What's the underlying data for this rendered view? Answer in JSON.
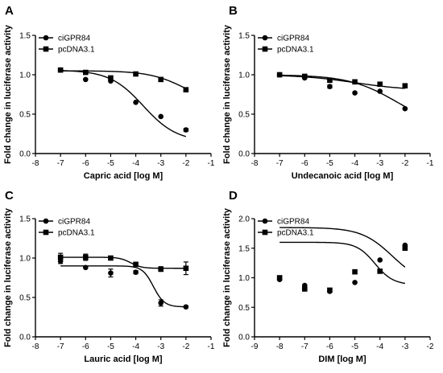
{
  "chart_data": [
    {
      "panel": "A",
      "type": "scatter",
      "xlabel": "Capric acid [log M]",
      "ylabel": "Fold change in luciferase activity",
      "xlim": [
        -8,
        -1
      ],
      "ylim": [
        0,
        1.5
      ],
      "xticks": [
        "-8",
        "-7",
        "-6",
        "-5",
        "-4",
        "-3",
        "-2",
        "-1"
      ],
      "yticks": [
        "0.0",
        "0.5",
        "1.0",
        "1.5"
      ],
      "legend_position": "top-left",
      "series": [
        {
          "name": "ciGPR84",
          "marker": "circle",
          "x": [
            -7,
            -6,
            -5,
            -4,
            -3,
            -2
          ],
          "y": [
            1.06,
            0.94,
            0.92,
            0.65,
            0.47,
            0.3
          ],
          "err": [
            0,
            0,
            0,
            0,
            0,
            0.02
          ],
          "fit": {
            "top": 1.06,
            "bottom": 0.15,
            "logec50": -3.7,
            "hill": 0.65
          }
        },
        {
          "name": "pcDNA3.1",
          "marker": "square",
          "x": [
            -7,
            -6,
            -5,
            -4,
            -3,
            -2
          ],
          "y": [
            1.06,
            1.03,
            0.96,
            1.01,
            0.94,
            0.81
          ],
          "err": [
            0,
            0,
            0,
            0,
            0,
            0.02
          ],
          "fit": {
            "top": 1.05,
            "bottom": 0.6,
            "logec50": -2.0,
            "hill": 0.6
          }
        }
      ]
    },
    {
      "panel": "B",
      "type": "scatter",
      "xlabel": "Undecanoic acid [log M]",
      "ylabel": "Fold change in luciferase activity",
      "xlim": [
        -8,
        -1
      ],
      "ylim": [
        0,
        1.5
      ],
      "xticks": [
        "-8",
        "-7",
        "-6",
        "-5",
        "-4",
        "-3",
        "-2",
        "-1"
      ],
      "yticks": [
        "0.0",
        "0.5",
        "1.0",
        "1.5"
      ],
      "legend_position": "top-left",
      "series": [
        {
          "name": "ciGPR84",
          "marker": "circle",
          "x": [
            -7,
            -6,
            -5,
            -4,
            -3,
            -2
          ],
          "y": [
            1.0,
            0.96,
            0.85,
            0.77,
            0.79,
            0.57
          ],
          "err": [
            0,
            0,
            0.02,
            0,
            0,
            0
          ],
          "fit": {
            "top": 1.0,
            "bottom": 0.3,
            "logec50": -2.3,
            "hill": 0.45
          }
        },
        {
          "name": "pcDNA3.1",
          "marker": "square",
          "x": [
            -7,
            -6,
            -5,
            -4,
            -3,
            -2
          ],
          "y": [
            1.0,
            0.98,
            0.93,
            0.91,
            0.88,
            0.86
          ],
          "err": [
            0,
            0,
            0,
            0,
            0,
            0
          ],
          "fit": {
            "top": 1.0,
            "bottom": 0.8,
            "logec50": -4.0,
            "hill": 0.4
          }
        }
      ]
    },
    {
      "panel": "C",
      "type": "scatter",
      "xlabel": "Lauric acid [log M]",
      "ylabel": "Fold change in luciferase activity",
      "xlim": [
        -8,
        -1
      ],
      "ylim": [
        0,
        1.5
      ],
      "xticks": [
        "-8",
        "-7",
        "-6",
        "-5",
        "-4",
        "-3",
        "-2",
        "-1"
      ],
      "yticks": [
        "0.0",
        "0.5",
        "1.0",
        "1.5"
      ],
      "legend_position": "top-left",
      "series": [
        {
          "name": "ciGPR84",
          "marker": "circle",
          "x": [
            -7,
            -6,
            -5,
            -4,
            -3,
            -2
          ],
          "y": [
            0.96,
            0.88,
            0.81,
            0.82,
            0.43,
            0.38
          ],
          "err": [
            0.03,
            0,
            0.05,
            0.02,
            0.04,
            0.01
          ],
          "fit": {
            "top": 0.9,
            "bottom": 0.38,
            "logec50": -3.3,
            "hill": 2.0
          }
        },
        {
          "name": "pcDNA3.1",
          "marker": "square",
          "x": [
            -7,
            -6,
            -5,
            -4,
            -3,
            -2
          ],
          "y": [
            1.01,
            1.01,
            1.0,
            0.92,
            0.86,
            0.87
          ],
          "err": [
            0.05,
            0.04,
            0.02,
            0.02,
            0.03,
            0.08
          ],
          "fit": {
            "top": 1.01,
            "bottom": 0.87,
            "logec50": -4.2,
            "hill": 2.0
          }
        }
      ]
    },
    {
      "panel": "D",
      "type": "scatter",
      "xlabel": "DIM [log M]",
      "ylabel": "Fold change in luciferase activity",
      "xlim": [
        -9,
        -2
      ],
      "ylim": [
        0,
        2
      ],
      "xticks": [
        "-9",
        "-8",
        "-7",
        "-6",
        "-5",
        "-4",
        "-3",
        "-2"
      ],
      "yticks": [
        "0.0",
        "0.5",
        "1.0",
        "1.5",
        "2.0"
      ],
      "legend_position": "top-left",
      "series": [
        {
          "name": "ciGPR84",
          "marker": "circle",
          "x": [
            -8,
            -7,
            -6,
            -5,
            -4,
            -3
          ],
          "y": [
            0.97,
            0.87,
            0.77,
            0.92,
            1.3,
            1.55
          ],
          "err": [
            0,
            0,
            0,
            0,
            0,
            0
          ],
          "fit": {
            "top": 1.6,
            "bottom": 0.88,
            "logec50": -4.2,
            "hill": 1.2
          }
        },
        {
          "name": "pcDNA3.1",
          "marker": "square",
          "x": [
            -8,
            -7,
            -6,
            -5,
            -4,
            -3
          ],
          "y": [
            1.0,
            0.81,
            0.79,
            1.1,
            1.11,
            1.5
          ],
          "err": [
            0,
            0,
            0,
            0,
            0,
            0
          ],
          "fit": {
            "top": 1.85,
            "bottom": 0.88,
            "logec50": -3.5,
            "hill": 0.7
          }
        }
      ]
    }
  ]
}
